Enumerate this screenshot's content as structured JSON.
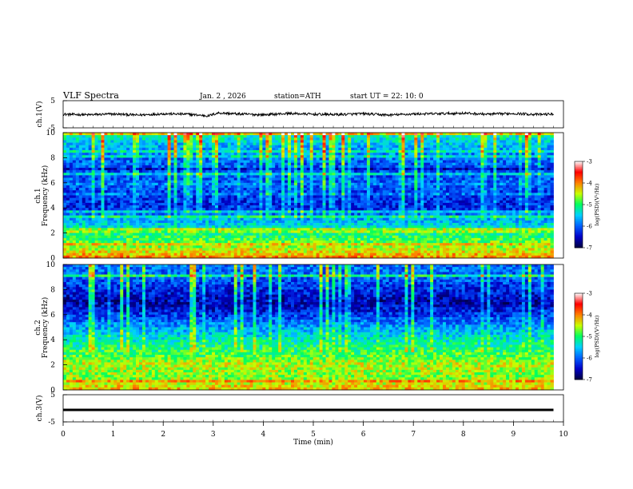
{
  "header": {
    "title": "VLF  Spectra",
    "date": "Jan. 2  , 2026",
    "station": "station=ATH",
    "start": "start  UT  =   22: 10: 0"
  },
  "chart_data": [
    {
      "type": "line",
      "name": "ch1-waveform",
      "ylabel": "ch.1(V)",
      "ylim": [
        -5,
        5
      ],
      "yticks": [
        "5",
        "-5"
      ],
      "x": [
        0.0,
        0.5,
        1.0,
        1.5,
        2.0,
        2.5,
        2.9,
        3.1,
        3.5,
        4.0,
        4.5,
        5.0,
        5.5,
        6.0,
        6.5,
        7.0,
        7.5,
        8.0,
        8.5,
        9.0,
        9.5,
        9.8
      ],
      "values": [
        0.0,
        -0.2,
        0.1,
        -0.3,
        0.2,
        0.0,
        -0.6,
        0.5,
        0.1,
        -0.2,
        0.3,
        0.0,
        -0.1,
        0.2,
        -0.3,
        0.1,
        0.2,
        0.4,
        0.0,
        0.3,
        -0.1,
        0.1
      ]
    },
    {
      "type": "heatmap",
      "name": "ch1-spectrogram",
      "ylabel": "ch.1\nFrequency (kHz)",
      "ylim": [
        0,
        10
      ],
      "yticks": [
        "0",
        "2",
        "4",
        "6",
        "8",
        "10"
      ],
      "xlim": [
        0,
        10
      ],
      "colorbar": {
        "label": "log(PSD)(V²/Hz)",
        "range": [
          -7,
          -3
        ],
        "ticks": [
          "-3",
          "-4",
          "-5",
          "-6",
          "-7"
        ]
      },
      "profile_freq_khz": [
        0,
        1,
        2,
        3,
        4,
        5,
        6,
        7,
        8,
        9,
        10
      ],
      "profile_log_psd": [
        -4.0,
        -4.7,
        -5.1,
        -5.6,
        -6.3,
        -6.2,
        -6.0,
        -6.1,
        -5.9,
        -5.6,
        -5.1
      ]
    },
    {
      "type": "heatmap",
      "name": "ch2-spectrogram",
      "ylabel": "ch.2\nFrequency (kHz)",
      "ylim": [
        0,
        10
      ],
      "yticks": [
        "0",
        "2",
        "4",
        "6",
        "8",
        "10"
      ],
      "xlim": [
        0,
        10
      ],
      "colorbar": {
        "label": "log(PSD)(V²/Hz)",
        "range": [
          -7,
          -3
        ],
        "ticks": [
          "-3",
          "-4",
          "-5",
          "-6",
          "-7"
        ]
      },
      "profile_freq_khz": [
        0,
        1,
        2,
        3,
        4,
        5,
        6,
        7,
        8,
        9,
        10
      ],
      "profile_log_psd": [
        -4.2,
        -4.7,
        -4.5,
        -4.9,
        -5.3,
        -5.7,
        -6.2,
        -6.6,
        -6.3,
        -6.0,
        -5.9
      ]
    },
    {
      "type": "line",
      "name": "ch3-waveform",
      "ylabel": "ch.3(V)",
      "ylim": [
        -5,
        5
      ],
      "yticks": [
        "5",
        "-5"
      ],
      "x": [
        0.0,
        9.8
      ],
      "values": [
        -0.6,
        -0.6
      ]
    }
  ],
  "xaxis": {
    "label": "Time  (min)",
    "lim": [
      0,
      10
    ],
    "ticks": [
      "0",
      "1",
      "2",
      "3",
      "4",
      "5",
      "6",
      "7",
      "8",
      "9",
      "10"
    ],
    "data_end_min": 9.8
  },
  "colors": {
    "scale": [
      "#000040",
      "#0000c8",
      "#0060ff",
      "#00d0ff",
      "#00ff60",
      "#c8ff00",
      "#ff8000",
      "#ff0000",
      "#ffffff"
    ]
  }
}
